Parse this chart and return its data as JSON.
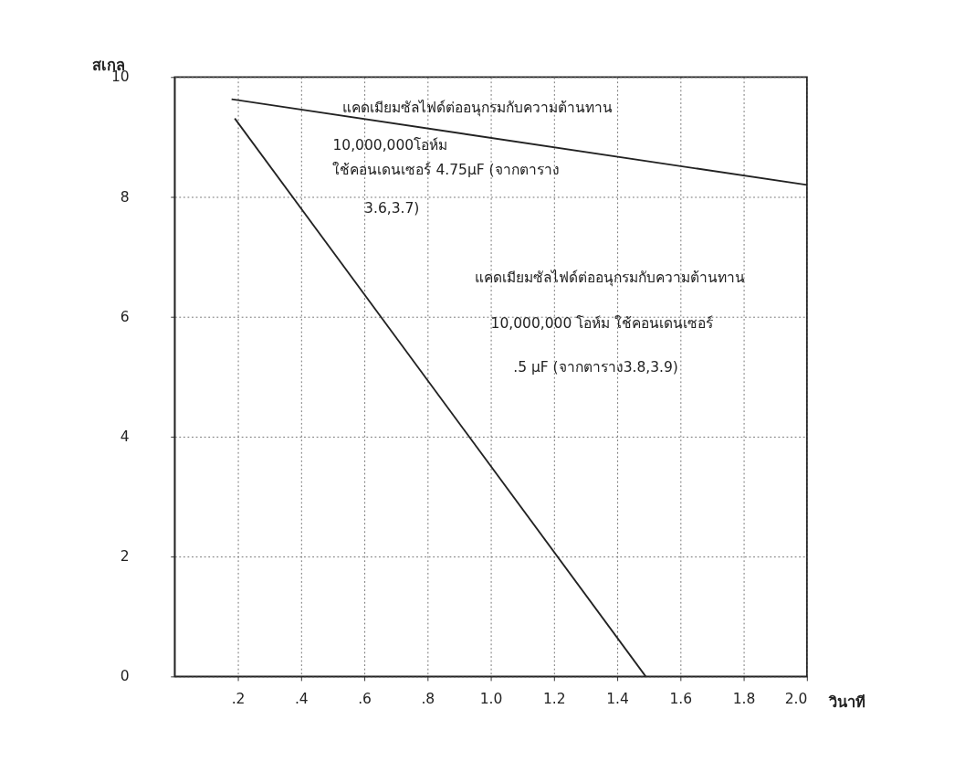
{
  "chart_data": {
    "type": "line",
    "xlabel": "วินาที",
    "ylabel": "สเกล",
    "xlim": [
      0,
      2.0
    ],
    "ylim": [
      0,
      10
    ],
    "xticks": [
      {
        "value": 0.2,
        "label": ".2"
      },
      {
        "value": 0.4,
        "label": ".4"
      },
      {
        "value": 0.6,
        "label": ".6"
      },
      {
        "value": 0.8,
        "label": ".8"
      },
      {
        "value": 1.0,
        "label": "1.0"
      },
      {
        "value": 1.2,
        "label": "1.2"
      },
      {
        "value": 1.4,
        "label": "1.4"
      },
      {
        "value": 1.6,
        "label": "1.6"
      },
      {
        "value": 1.8,
        "label": "1.8"
      },
      {
        "value": 2.0,
        "label": "2.0"
      }
    ],
    "yticks": [
      0,
      2,
      4,
      6,
      8,
      10
    ],
    "grid": true,
    "line_style": "solid",
    "series": [
      {
        "color": "#222222",
        "x": [
          0.18,
          2.0
        ],
        "values": [
          9.63,
          8.2
        ]
      },
      {
        "color": "#222222",
        "x": [
          0.19,
          1.49
        ],
        "values": [
          9.31,
          0
        ]
      }
    ],
    "annotations": [
      "แคดเมียมซัลไฟด์ต่ออนุกรมกับความต้านทาน",
      "10,000,000โอห์ม",
      "ใช้คอนเดนเซอร์ 4.75µF (จากตาราง",
      "3.6,3.7)",
      "แคดเมียมซัลไฟด์ต่ออนุกรมกับความต้านทาน",
      "10,000,000 โอห์ม ใช้คอนเดนเซอร์",
      ".5 µF (จากตาราง3.8,3.9)"
    ]
  }
}
